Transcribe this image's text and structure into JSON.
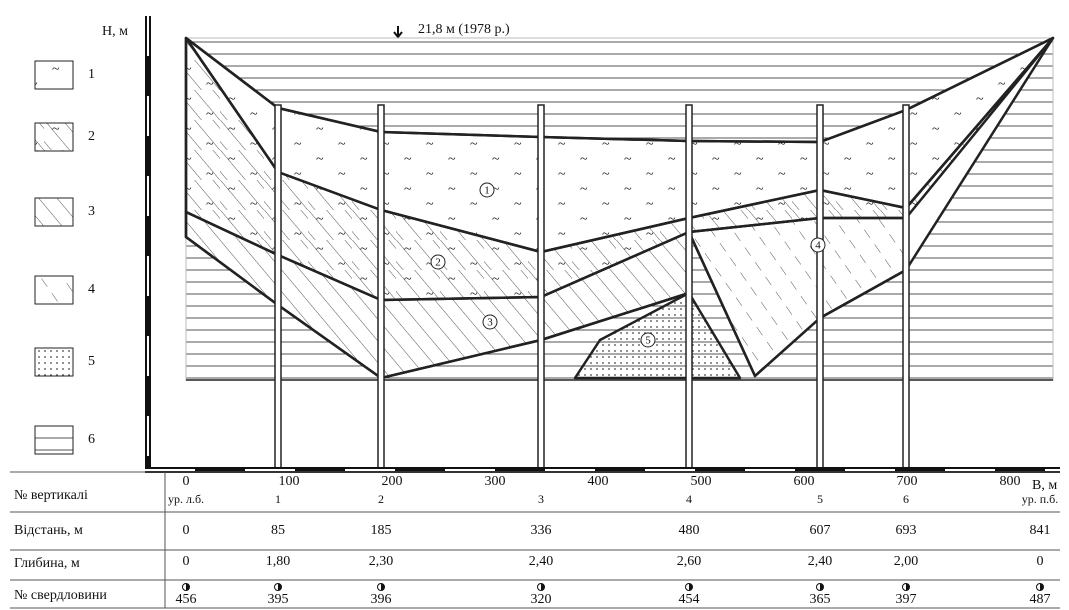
{
  "header": {
    "y_axis_label": "H, м",
    "water_level": "21,8 м (1978 р.)"
  },
  "legend": [
    "1",
    "2",
    "3",
    "4",
    "5",
    "6"
  ],
  "layers": [
    "1",
    "2",
    "3",
    "4",
    "5"
  ],
  "axis": {
    "ticks": [
      0,
      100,
      200,
      300,
      400,
      500,
      600,
      700,
      800
    ],
    "x_label": "B, м"
  },
  "table": {
    "row_labels": [
      "№ вертикалі",
      "Відстань, м",
      "Глибина, м",
      "№ свердловини"
    ],
    "verticals": [
      "ур. л.б.",
      "1",
      "2",
      "3",
      "4",
      "5",
      "6",
      "ур. п.б."
    ],
    "distances": [
      0,
      85,
      185,
      336,
      480,
      607,
      693,
      841
    ],
    "depths": [
      "0",
      "1,80",
      "2,30",
      "2,40",
      "2,60",
      "2,40",
      "2,00",
      "0"
    ],
    "wells": [
      456,
      395,
      396,
      320,
      454,
      365,
      397,
      487
    ]
  }
}
